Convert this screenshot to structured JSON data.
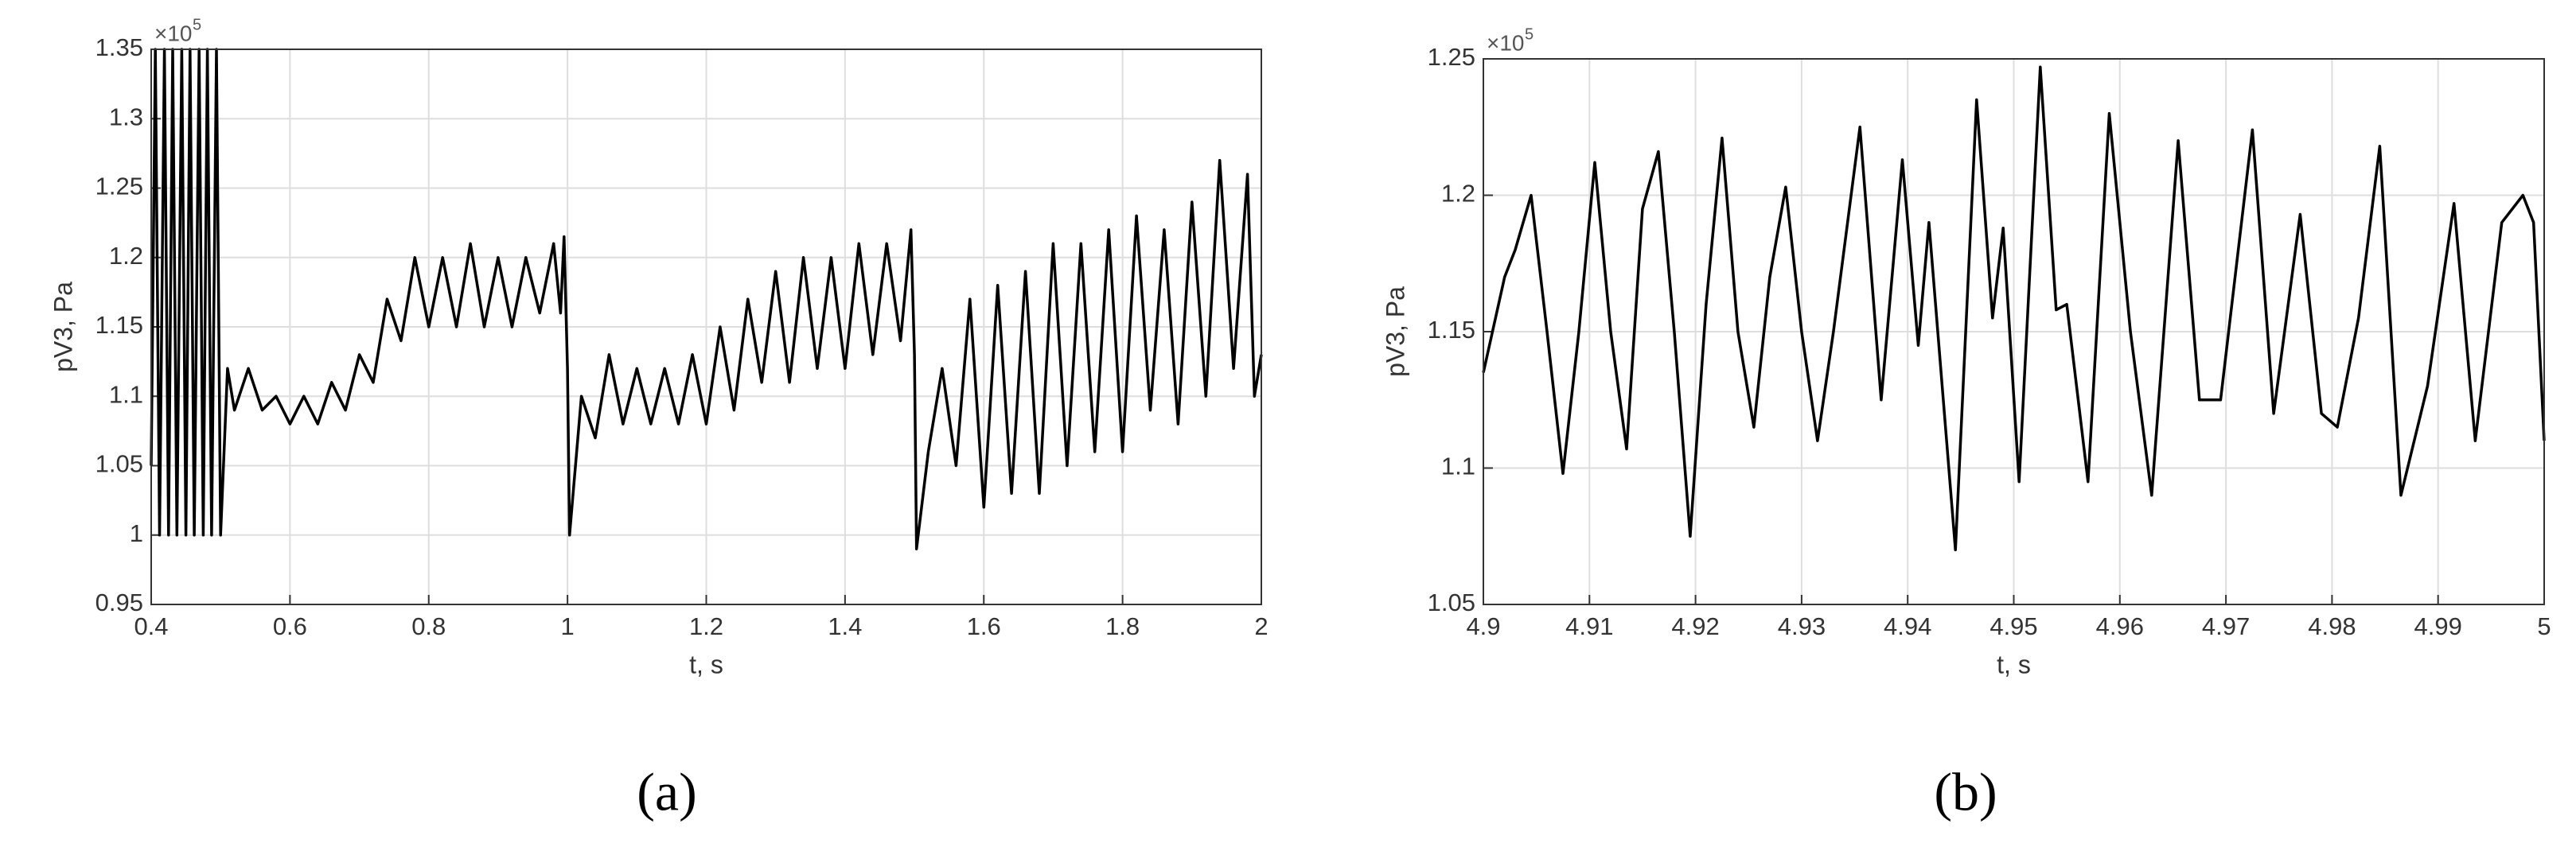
{
  "chart_data": [
    {
      "type": "line",
      "panel_label": "(a)",
      "x_label": "t, s",
      "y_label": "pV3, Pa",
      "y_scale_label": "×10",
      "y_scale_exponent": "5",
      "color": "#000000",
      "grid": true,
      "xlim": [
        0.4,
        2
      ],
      "xticks": [
        0.4,
        0.6,
        0.8,
        1,
        1.2,
        1.4,
        1.6,
        1.8,
        2
      ],
      "ylim": [
        0.95,
        1.35
      ],
      "yticks": [
        0.95,
        1,
        1.05,
        1.1,
        1.15,
        1.2,
        1.25,
        1.3,
        1.35
      ],
      "x": [
        0.4,
        0.406,
        0.412,
        0.419,
        0.425,
        0.431,
        0.437,
        0.444,
        0.45,
        0.456,
        0.462,
        0.469,
        0.475,
        0.481,
        0.487,
        0.494,
        0.5,
        0.51,
        0.52,
        0.54,
        0.56,
        0.58,
        0.6,
        0.62,
        0.64,
        0.66,
        0.68,
        0.7,
        0.72,
        0.74,
        0.76,
        0.78,
        0.8,
        0.82,
        0.84,
        0.86,
        0.88,
        0.9,
        0.92,
        0.94,
        0.96,
        0.98,
        0.99,
        0.995,
        1.0,
        1.003,
        1.02,
        1.04,
        1.06,
        1.08,
        1.1,
        1.12,
        1.14,
        1.16,
        1.18,
        1.2,
        1.22,
        1.24,
        1.26,
        1.28,
        1.3,
        1.32,
        1.34,
        1.36,
        1.38,
        1.4,
        1.42,
        1.44,
        1.46,
        1.48,
        1.495,
        1.5,
        1.503,
        1.52,
        1.54,
        1.56,
        1.58,
        1.6,
        1.62,
        1.64,
        1.66,
        1.68,
        1.7,
        1.72,
        1.74,
        1.76,
        1.78,
        1.8,
        1.82,
        1.84,
        1.86,
        1.88,
        1.9,
        1.92,
        1.94,
        1.96,
        1.98,
        1.99,
        2.0
      ],
      "values": [
        1.05,
        1.35,
        1.0,
        1.35,
        1.0,
        1.35,
        1.0,
        1.35,
        1.0,
        1.35,
        1.0,
        1.35,
        1.0,
        1.35,
        1.0,
        1.35,
        1.0,
        1.12,
        1.09,
        1.12,
        1.09,
        1.1,
        1.08,
        1.1,
        1.08,
        1.11,
        1.09,
        1.13,
        1.11,
        1.17,
        1.14,
        1.2,
        1.15,
        1.2,
        1.15,
        1.21,
        1.15,
        1.2,
        1.15,
        1.2,
        1.16,
        1.21,
        1.16,
        1.215,
        1.12,
        1.0,
        1.1,
        1.07,
        1.13,
        1.08,
        1.12,
        1.08,
        1.12,
        1.08,
        1.13,
        1.08,
        1.15,
        1.09,
        1.17,
        1.11,
        1.19,
        1.11,
        1.2,
        1.12,
        1.2,
        1.12,
        1.21,
        1.13,
        1.21,
        1.14,
        1.22,
        1.13,
        0.99,
        1.06,
        1.12,
        1.05,
        1.17,
        1.02,
        1.18,
        1.03,
        1.19,
        1.03,
        1.21,
        1.05,
        1.21,
        1.06,
        1.22,
        1.06,
        1.23,
        1.09,
        1.22,
        1.08,
        1.24,
        1.1,
        1.27,
        1.12,
        1.26,
        1.1,
        1.13
      ]
    },
    {
      "type": "line",
      "panel_label": "(b)",
      "x_label": "t, s",
      "y_label": "pV3, Pa",
      "y_scale_label": "×10",
      "y_scale_exponent": "5",
      "color": "#000000",
      "grid": true,
      "xlim": [
        4.9,
        5
      ],
      "xticks": [
        4.9,
        4.91,
        4.92,
        4.93,
        4.94,
        4.95,
        4.96,
        4.97,
        4.98,
        4.99,
        5
      ],
      "ylim": [
        1.05,
        1.25
      ],
      "yticks": [
        1.05,
        1.1,
        1.15,
        1.2,
        1.25
      ],
      "x": [
        4.9,
        4.902,
        4.903,
        4.9045,
        4.906,
        4.9075,
        4.909,
        4.9105,
        4.912,
        4.9135,
        4.915,
        4.9165,
        4.918,
        4.9195,
        4.921,
        4.9225,
        4.924,
        4.9255,
        4.927,
        4.9285,
        4.93,
        4.9315,
        4.933,
        4.9355,
        4.937,
        4.9375,
        4.9395,
        4.941,
        4.942,
        4.9445,
        4.9465,
        4.948,
        4.949,
        4.9505,
        4.9525,
        4.954,
        4.955,
        4.957,
        4.959,
        4.961,
        4.963,
        4.9655,
        4.9675,
        4.9695,
        4.9725,
        4.9745,
        4.977,
        4.979,
        4.9805,
        4.9825,
        4.9845,
        4.9865,
        4.989,
        4.9915,
        4.9935,
        4.996,
        4.998,
        4.999,
        5.0
      ],
      "values": [
        1.135,
        1.17,
        1.18,
        1.2,
        1.15,
        1.098,
        1.15,
        1.212,
        1.15,
        1.107,
        1.195,
        1.216,
        1.15,
        1.075,
        1.16,
        1.221,
        1.15,
        1.115,
        1.17,
        1.203,
        1.15,
        1.11,
        1.15,
        1.225,
        1.15,
        1.125,
        1.213,
        1.145,
        1.19,
        1.07,
        1.235,
        1.155,
        1.188,
        1.095,
        1.247,
        1.158,
        1.16,
        1.095,
        1.23,
        1.15,
        1.09,
        1.22,
        1.125,
        1.125,
        1.224,
        1.12,
        1.193,
        1.12,
        1.115,
        1.155,
        1.218,
        1.09,
        1.13,
        1.197,
        1.11,
        1.19,
        1.2,
        1.19,
        1.11
      ]
    }
  ]
}
